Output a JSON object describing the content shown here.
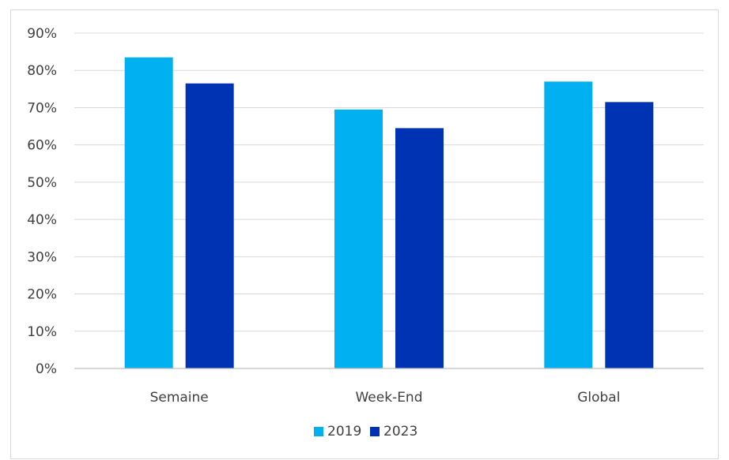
{
  "chart_data": {
    "type": "bar",
    "categories": [
      "Semaine",
      "Week-End",
      "Global"
    ],
    "series": [
      {
        "name": "2019",
        "values": [
          83.5,
          69.5,
          77.0
        ],
        "color": "#00b0f0"
      },
      {
        "name": "2023",
        "values": [
          76.5,
          64.5,
          71.5
        ],
        "color": "#0033b3"
      }
    ],
    "ylim": [
      0,
      90
    ],
    "yticks": [
      "0%",
      "10%",
      "20%",
      "30%",
      "40%",
      "50%",
      "60%",
      "70%",
      "80%",
      "90%"
    ],
    "ytick_values": [
      0,
      10,
      20,
      30,
      40,
      50,
      60,
      70,
      80,
      90
    ],
    "grid": true,
    "legend_position": "bottom"
  }
}
